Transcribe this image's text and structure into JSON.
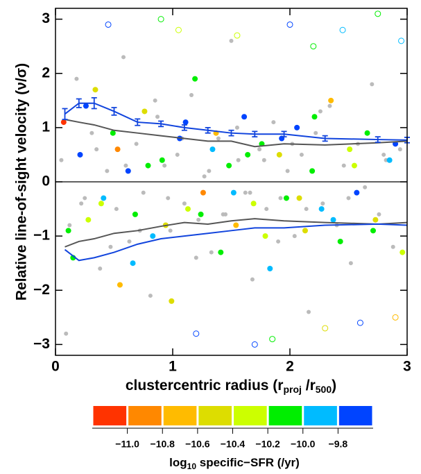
{
  "chart_data": {
    "type": "scatter",
    "xlabel": [
      "clustercentric radius (r",
      "proj",
      " /r",
      "500",
      ")"
    ],
    "ylabel": "Relative line-of-sight velocity (ν/σ)",
    "xlim": [
      0,
      3
    ],
    "ylim": [
      -3.2,
      3.2
    ],
    "xticks": [
      0,
      1,
      2,
      3
    ],
    "yticks": [
      {
        "value": -3,
        "label": "−3"
      },
      {
        "value": -2,
        "label": "−2"
      },
      {
        "value": -1,
        "label": "−1"
      },
      0,
      1,
      2,
      3
    ],
    "hline": 0,
    "series": [
      {
        "color": "#bbbbbb",
        "marker": "filled",
        "x": [
          0.05,
          0.12,
          0.18,
          0.25,
          0.31,
          0.38,
          0.44,
          0.52,
          0.58,
          0.63,
          0.69,
          0.75,
          0.81,
          0.87,
          0.93,
          0.98,
          1.04,
          1.1,
          1.16,
          1.22,
          1.27,
          1.33,
          1.39,
          1.45,
          1.5,
          1.56,
          1.62,
          1.68,
          1.74,
          1.8,
          1.86,
          1.92,
          1.98,
          2.04,
          2.1,
          2.16,
          2.22,
          2.28,
          2.34,
          2.4,
          2.46,
          2.52,
          2.58,
          2.64,
          2.7,
          2.76,
          2.82,
          2.88,
          2.94,
          0.09,
          0.22,
          0.35,
          0.47,
          0.6,
          0.72,
          0.85,
          0.96,
          1.08,
          1.2,
          1.31,
          1.43,
          1.55,
          1.66,
          1.78,
          1.9,
          2.02,
          2.14,
          2.26,
          2.5,
          2.8
        ],
        "values": [
          0.4,
          -0.8,
          1.9,
          -0.3,
          0.9,
          -1.6,
          0.2,
          -0.5,
          2.3,
          -1.1,
          0.7,
          -0.2,
          -2.1,
          1.2,
          0.3,
          -0.9,
          0.5,
          -0.4,
          1.6,
          -0.7,
          0.1,
          -1.3,
          0.8,
          -0.6,
          2.6,
          0.4,
          -0.2,
          -1.8,
          0.6,
          -0.5,
          1.1,
          -0.3,
          0.2,
          -1.0,
          0.5,
          -2.4,
          0.9,
          -0.4,
          1.4,
          -0.8,
          0.3,
          -1.5,
          0.7,
          -0.1,
          1.8,
          -0.6,
          0.4,
          -1.2,
          0.6,
          -2.8,
          -0.4,
          0.6,
          -1.2,
          0.3,
          -0.9,
          1.5,
          -0.3,
          0.8,
          -1.4,
          0.2,
          -0.6,
          1.0,
          -0.2,
          0.4,
          -1.1,
          0.7,
          -0.5,
          1.3,
          -0.3,
          0.5
        ]
      },
      {
        "marker": "filled",
        "x": [
          0.07,
          0.15,
          0.21,
          0.28,
          0.34,
          0.41,
          0.49,
          0.55,
          0.62,
          0.68,
          0.76,
          0.83,
          0.91,
          0.99,
          1.06,
          1.13,
          1.19,
          1.26,
          1.34,
          1.41,
          1.48,
          1.54,
          1.61,
          1.69,
          1.76,
          1.83,
          1.91,
          1.97,
          2.06,
          2.13,
          2.19,
          2.27,
          2.35,
          2.43,
          2.51,
          2.57,
          2.66,
          2.73,
          2.85,
          2.96,
          0.11,
          0.26,
          0.39,
          0.53,
          0.66,
          0.79,
          0.94,
          1.11,
          1.24,
          1.37,
          1.52,
          1.64,
          1.79,
          1.93,
          2.08,
          2.21,
          2.37,
          2.55,
          2.71,
          2.9
        ],
        "values": [
          1.1,
          -1.4,
          0.5,
          -0.7,
          1.7,
          -0.3,
          0.9,
          -1.9,
          0.2,
          -0.6,
          1.3,
          -1.0,
          0.4,
          -2.2,
          0.8,
          -0.5,
          1.9,
          -0.2,
          0.6,
          -1.3,
          0.3,
          -0.8,
          1.2,
          -0.4,
          0.7,
          -1.6,
          0.5,
          -0.3,
          1.0,
          -0.9,
          0.2,
          -0.5,
          1.5,
          -1.1,
          0.6,
          -0.2,
          0.9,
          -0.7,
          0.4,
          -1.3,
          -0.9,
          1.4,
          -0.4,
          0.6,
          -1.5,
          0.3,
          -0.8,
          1.1,
          -0.6,
          0.9,
          -0.2,
          0.5,
          -1.0,
          0.8,
          -0.3,
          1.2,
          -0.7,
          0.3,
          -0.9,
          0.7
        ],
        "z": [
          -11.1,
          -10.1,
          -9.7,
          -10.3,
          -10.5,
          -9.9,
          -10.1,
          -10.7,
          -9.7,
          -10.2,
          -10.4,
          -9.8,
          -10.1,
          -10.5,
          -9.7,
          -10.3,
          -10.1,
          -10.9,
          -9.9,
          -10.2,
          -10.1,
          -10.6,
          -9.7,
          -10.3,
          -10.0,
          -9.8,
          -10.5,
          -10.1,
          -9.7,
          -10.4,
          -10.2,
          -9.9,
          -10.7,
          -10.1,
          -10.3,
          -9.7,
          -10.1,
          -10.5,
          -9.8,
          -10.3,
          -10.1,
          -9.7,
          -10.3,
          -10.9,
          -9.9,
          -10.1,
          -10.4,
          -9.7,
          -10.2,
          -10.6,
          -9.8,
          -10.1,
          -10.3,
          -9.7,
          -10.5,
          -10.1,
          -9.9,
          -10.3,
          -10.1,
          -9.7
        ]
      },
      {
        "marker": "open",
        "x": [
          0.45,
          0.9,
          1.2,
          1.55,
          1.85,
          2.0,
          2.3,
          2.45,
          2.6,
          2.75,
          2.9,
          1.05,
          1.7,
          2.2,
          2.95
        ],
        "values": [
          2.9,
          3.0,
          -2.8,
          2.7,
          -2.9,
          2.9,
          -2.7,
          2.8,
          -2.6,
          3.1,
          -2.5,
          2.8,
          -3.0,
          2.5,
          2.6
        ],
        "z": [
          -9.7,
          -10.1,
          -9.7,
          -10.3,
          -10.1,
          -9.7,
          -10.5,
          -9.9,
          -9.7,
          -10.1,
          -10.7,
          -10.3,
          -9.7,
          -10.1,
          -9.9
        ]
      }
    ],
    "lines": [
      {
        "color": "#555555",
        "x": [
          0.08,
          0.2,
          0.33,
          0.5,
          0.7,
          0.9,
          1.1,
          1.3,
          1.5,
          1.7,
          1.95,
          2.3,
          2.75,
          3.0
        ],
        "values": [
          1.15,
          1.1,
          1.05,
          0.95,
          0.9,
          0.85,
          0.8,
          0.75,
          0.75,
          0.65,
          0.7,
          0.68,
          0.72,
          0.75
        ]
      },
      {
        "color": "#555555",
        "x": [
          0.08,
          0.2,
          0.33,
          0.5,
          0.7,
          0.9,
          1.1,
          1.3,
          1.5,
          1.7,
          1.95,
          2.3,
          2.75,
          3.0
        ],
        "values": [
          -1.2,
          -1.1,
          -1.05,
          -0.95,
          -0.9,
          -0.82,
          -0.75,
          -0.78,
          -0.72,
          -0.68,
          -0.72,
          -0.75,
          -0.78,
          -0.75
        ]
      },
      {
        "color": "#1144dd",
        "x": [
          0.08,
          0.2,
          0.33,
          0.5,
          0.7,
          0.9,
          1.1,
          1.3,
          1.5,
          1.7,
          1.95,
          2.3,
          2.75,
          3.0
        ],
        "values": [
          1.25,
          1.45,
          1.45,
          1.3,
          1.1,
          1.07,
          1.0,
          0.95,
          0.9,
          0.88,
          0.88,
          0.8,
          0.78,
          0.77
        ],
        "errors": [
          0.1,
          0.08,
          0.1,
          0.07,
          0.06,
          0.05,
          0.05,
          0.05,
          0.05,
          0.05,
          0.05,
          0.05,
          0.05,
          0.05
        ]
      },
      {
        "color": "#1144dd",
        "x": [
          0.08,
          0.2,
          0.33,
          0.5,
          0.7,
          0.9,
          1.1,
          1.3,
          1.5,
          1.7,
          1.95,
          2.3,
          2.75,
          3.0
        ],
        "values": [
          -1.25,
          -1.45,
          -1.4,
          -1.3,
          -1.15,
          -1.05,
          -1.0,
          -0.95,
          -0.9,
          -0.85,
          -0.85,
          -0.8,
          -0.78,
          -0.8
        ]
      }
    ],
    "colorbar": {
      "label": [
        "log",
        "10",
        " specific−SFR (/yr)"
      ],
      "clim": [
        -11.2,
        -9.6
      ],
      "colors": [
        "#ff3300",
        "#ff8800",
        "#ffbb00",
        "#dddd00",
        "#ccff00",
        "#00ee00",
        "#00bbff",
        "#0044ff"
      ],
      "ticks": [
        {
          "value": -11.0,
          "label": "−11.0"
        },
        {
          "value": -10.8,
          "label": "−10.8"
        },
        {
          "value": -10.6,
          "label": "−10.6"
        },
        {
          "value": -10.4,
          "label": "−10.4"
        },
        {
          "value": -10.2,
          "label": "−10.2"
        },
        {
          "value": -10.0,
          "label": "−10.0"
        },
        {
          "value": -9.8,
          "label": "−9.8"
        }
      ]
    }
  }
}
